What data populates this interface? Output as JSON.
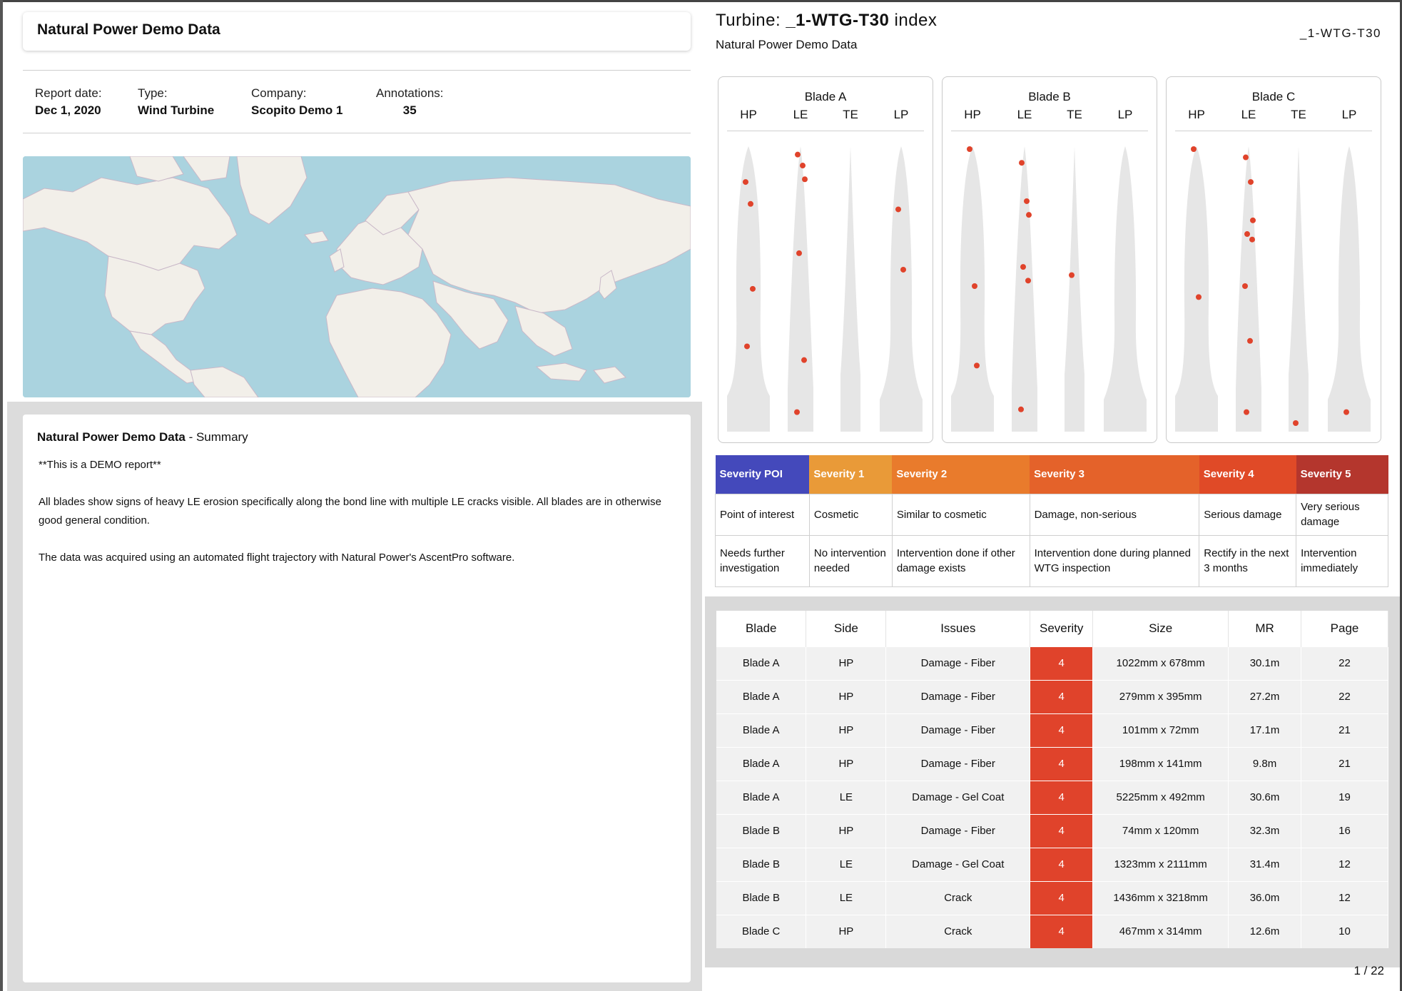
{
  "report": {
    "title": "Natural Power Demo Data",
    "meta": {
      "report_date_label": "Report date:",
      "report_date": "Dec 1, 2020",
      "type_label": "Type:",
      "type": "Wind Turbine",
      "company_label": "Company:",
      "company": "Scopito Demo 1",
      "annotations_label": "Annotations:",
      "annotations": "35"
    },
    "summary": {
      "title": "Natural Power Demo Data",
      "suffix": " - Summary",
      "paragraphs": [
        "**This is a DEMO report**",
        "All blades show signs of heavy LE erosion specifically along the bond line with multiple LE cracks visible. All blades are in otherwise good general condition.",
        "The data was acquired using an automated flight trajectory with Natural Power's AscentPro software."
      ]
    }
  },
  "turbine": {
    "title_prefix": "Turbine: ",
    "title_id": "_1-WTG-T30",
    "title_suffix": " index",
    "subtitle": "Natural Power Demo Data",
    "id_right": "_1-WTG-T30"
  },
  "blades": [
    {
      "name": "Blade A",
      "sides": [
        "HP",
        "LE",
        "TE",
        "LP"
      ],
      "markers": {
        "HP": [
          0.12,
          0.2,
          0.51,
          0.72
        ],
        "LE": [
          0.02,
          0.06,
          0.11,
          0.38,
          0.77,
          0.96
        ],
        "TE": [],
        "LP": [
          0.22,
          0.44
        ]
      }
    },
    {
      "name": "Blade B",
      "sides": [
        "HP",
        "LE",
        "TE",
        "LP"
      ],
      "markers": {
        "HP": [
          0.0,
          0.5,
          0.79
        ],
        "LE": [
          0.05,
          0.19,
          0.24,
          0.43,
          0.48,
          0.95
        ],
        "TE": [
          0.46
        ],
        "LP": []
      }
    },
    {
      "name": "Blade C",
      "sides": [
        "HP",
        "LE",
        "TE",
        "LP"
      ],
      "markers": {
        "HP": [
          0.0,
          0.54
        ],
        "LE": [
          0.03,
          0.12,
          0.26,
          0.31,
          0.33,
          0.5,
          0.7,
          0.96
        ],
        "TE": [
          1.0
        ],
        "LP": [
          0.96
        ]
      }
    }
  ],
  "severity_legend": {
    "headers": [
      "Severity POI",
      "Severity 1",
      "Severity 2",
      "Severity 3",
      "Severity 4",
      "Severity 5"
    ],
    "colors": [
      "#4449bb",
      "#e99a38",
      "#e97b2c",
      "#e4622a",
      "#e04a27",
      "#b4362d"
    ],
    "descriptions": [
      "Point of interest",
      "Cosmetic",
      "Similar to cosmetic",
      "Damage, non-serious",
      "Serious damage",
      "Very serious damage"
    ],
    "actions": [
      "Needs further investigation",
      "No intervention needed",
      "Intervention done if other damage exists",
      "Intervention done during planned WTG inspection",
      "Rectify in the next 3 months",
      "Intervention immediately"
    ]
  },
  "issues": {
    "columns": [
      "Blade",
      "Side",
      "Issues",
      "Severity",
      "Size",
      "MR",
      "Page"
    ],
    "rows": [
      [
        "Blade A",
        "HP",
        "Damage - Fiber",
        "4",
        "1022mm x 678mm",
        "30.1m",
        "22"
      ],
      [
        "Blade A",
        "HP",
        "Damage - Fiber",
        "4",
        "279mm x 395mm",
        "27.2m",
        "22"
      ],
      [
        "Blade A",
        "HP",
        "Damage - Fiber",
        "4",
        "101mm x 72mm",
        "17.1m",
        "21"
      ],
      [
        "Blade A",
        "HP",
        "Damage - Fiber",
        "4",
        "198mm x 141mm",
        "9.8m",
        "21"
      ],
      [
        "Blade A",
        "LE",
        "Damage - Gel Coat",
        "4",
        "5225mm x 492mm",
        "30.6m",
        "19"
      ],
      [
        "Blade B",
        "HP",
        "Damage - Fiber",
        "4",
        "74mm x 120mm",
        "32.3m",
        "16"
      ],
      [
        "Blade B",
        "LE",
        "Damage - Gel Coat",
        "4",
        "1323mm x 2111mm",
        "31.4m",
        "12"
      ],
      [
        "Blade B",
        "LE",
        "Crack",
        "4",
        "1436mm x 3218mm",
        "36.0m",
        "12"
      ],
      [
        "Blade C",
        "HP",
        "Crack",
        "4",
        "467mm x 314mm",
        "12.6m",
        "10"
      ]
    ]
  },
  "pagination": {
    "indicator": "1 / 22"
  },
  "colors": {
    "marker": "#e0432b",
    "blade_fill": "#e6e6e6",
    "map_water": "#aad3df",
    "map_land": "#f2efe9"
  }
}
